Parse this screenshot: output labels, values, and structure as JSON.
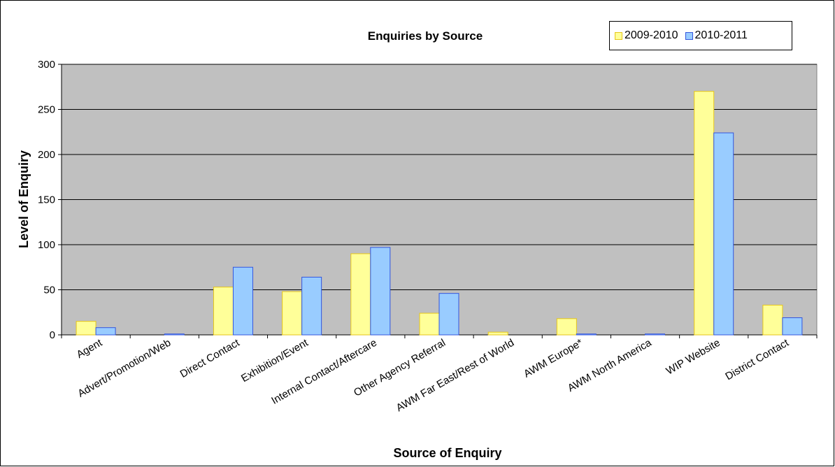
{
  "chart_data": {
    "type": "bar",
    "title": "Enquiries by Source",
    "xlabel": "Source of Enquiry",
    "ylabel": "Level of Enquiry",
    "ylim": [
      0,
      300
    ],
    "yticks": [
      0,
      50,
      100,
      150,
      200,
      250,
      300
    ],
    "grid": true,
    "legend_position": "top-right",
    "categories": [
      "Agent",
      "Advert/Promotion/Web",
      "Direct Contact",
      "Exhibition/Event",
      "Internal Contact/Aftercare",
      "Other Agency Referral",
      "AWM Far East/Rest of World",
      "AWM Europe*",
      "AWM North America",
      "WIP Website",
      "District Contact"
    ],
    "series": [
      {
        "name": "2009-2010",
        "values": [
          15,
          0,
          53,
          48,
          90,
          24,
          3,
          18,
          0,
          270,
          33
        ],
        "color": "#ffff99",
        "border": "#e6c619"
      },
      {
        "name": "2010-2011",
        "values": [
          8,
          1,
          75,
          64,
          97,
          46,
          0,
          1,
          1,
          224,
          19
        ],
        "color": "#99ccff",
        "border": "#3355dd"
      }
    ],
    "plot_background": "#c0c0c0"
  }
}
